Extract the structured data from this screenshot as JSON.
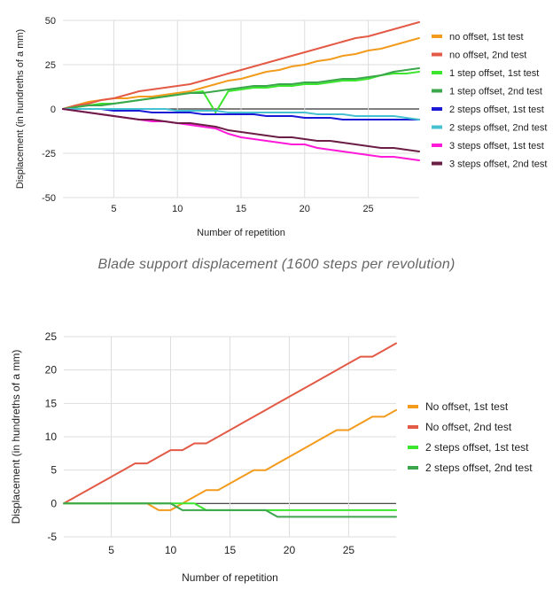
{
  "caption": "Blade support displacement (1600 steps per revolution)",
  "chart_data": [
    {
      "type": "line",
      "xlabel": "Number of repetition",
      "ylabel": "Displacement (in hundreths of a mm)",
      "x": [
        1,
        2,
        3,
        4,
        5,
        6,
        7,
        8,
        9,
        10,
        11,
        12,
        13,
        14,
        15,
        16,
        17,
        18,
        19,
        20,
        21,
        22,
        23,
        24,
        25,
        26,
        27,
        28,
        29
      ],
      "xlim": [
        1,
        29
      ],
      "ylim": [
        -50,
        50
      ],
      "xticks": [
        5,
        10,
        15,
        20,
        25
      ],
      "yticks": [
        -50,
        -25,
        0,
        25,
        50
      ],
      "grid": true,
      "legend": "right",
      "series": [
        {
          "name": "no offset, 1st test",
          "color": "#f29b1d",
          "values": [
            0,
            2,
            4,
            5,
            6,
            6,
            7,
            7,
            8,
            9,
            10,
            12,
            14,
            16,
            17,
            19,
            21,
            22,
            24,
            25,
            27,
            28,
            30,
            31,
            33,
            34,
            36,
            38,
            40
          ]
        },
        {
          "name": "no offset, 2nd test",
          "color": "#e35a46",
          "values": [
            0,
            2,
            3,
            5,
            6,
            8,
            10,
            11,
            12,
            13,
            14,
            16,
            18,
            20,
            22,
            24,
            26,
            28,
            30,
            32,
            34,
            36,
            38,
            40,
            41,
            43,
            45,
            47,
            49
          ]
        },
        {
          "name": "1 step offset, 1st test",
          "color": "#3ce62f",
          "values": [
            0,
            1,
            2,
            3,
            3,
            4,
            5,
            6,
            7,
            8,
            9,
            10,
            -2,
            10,
            11,
            12,
            12,
            13,
            13,
            14,
            14,
            15,
            16,
            16,
            17,
            19,
            20,
            20,
            21
          ]
        },
        {
          "name": "1 step offset, 2nd test",
          "color": "#3ca64c",
          "values": [
            0,
            1,
            2,
            2,
            3,
            4,
            5,
            6,
            7,
            8,
            9,
            9,
            10,
            11,
            12,
            13,
            13,
            14,
            14,
            15,
            15,
            16,
            17,
            17,
            18,
            19,
            21,
            22,
            23
          ]
        },
        {
          "name": "2 steps offset, 1st test",
          "color": "#1a1ad6",
          "values": [
            0,
            0,
            0,
            0,
            -1,
            -1,
            -1,
            -2,
            -2,
            -2,
            -2,
            -3,
            -3,
            -3,
            -3,
            -3,
            -4,
            -4,
            -4,
            -5,
            -5,
            -5,
            -6,
            -6,
            -6,
            -6,
            -6,
            -6,
            -6
          ]
        },
        {
          "name": "2 steps offset, 2nd test",
          "color": "#45c1d1",
          "values": [
            0,
            0,
            0,
            0,
            0,
            0,
            0,
            0,
            0,
            -1,
            -1,
            -1,
            -1,
            -2,
            -2,
            -2,
            -2,
            -2,
            -2,
            -2,
            -3,
            -3,
            -3,
            -4,
            -4,
            -4,
            -4,
            -5,
            -6
          ]
        },
        {
          "name": "3 steps offset, 1st test",
          "color": "#ff1ad9",
          "values": [
            0,
            -1,
            -2,
            -3,
            -4,
            -5,
            -6,
            -7,
            -7,
            -8,
            -9,
            -10,
            -11,
            -14,
            -16,
            -17,
            -18,
            -19,
            -20,
            -20,
            -22,
            -23,
            -24,
            -25,
            -26,
            -27,
            -27,
            -28,
            -29
          ]
        },
        {
          "name": "3 steps offset, 2nd test",
          "color": "#6b1e45",
          "values": [
            0,
            -1,
            -2,
            -3,
            -4,
            -5,
            -6,
            -6,
            -7,
            -8,
            -8,
            -9,
            -10,
            -12,
            -13,
            -14,
            -15,
            -16,
            -16,
            -17,
            -18,
            -18,
            -19,
            -20,
            -21,
            -22,
            -22,
            -23,
            -24
          ]
        }
      ]
    },
    {
      "type": "line",
      "xlabel": "Number of repetition",
      "ylabel": "Displacement (in hundreths of a mm)",
      "x": [
        1,
        2,
        3,
        4,
        5,
        6,
        7,
        8,
        9,
        10,
        11,
        12,
        13,
        14,
        15,
        16,
        17,
        18,
        19,
        20,
        21,
        22,
        23,
        24,
        25,
        26,
        27,
        28,
        29
      ],
      "xlim": [
        1,
        29
      ],
      "ylim": [
        -5,
        25
      ],
      "xticks": [
        5,
        10,
        15,
        20,
        25
      ],
      "yticks": [
        -5,
        0,
        5,
        10,
        15,
        20,
        25
      ],
      "grid": true,
      "legend": "right",
      "series": [
        {
          "name": "No offset, 1st test",
          "color": "#f29b1d",
          "values": [
            0,
            0,
            0,
            0,
            0,
            0,
            0,
            0,
            -1,
            -1,
            0,
            1,
            2,
            2,
            3,
            4,
            5,
            5,
            6,
            7,
            8,
            9,
            10,
            11,
            11,
            12,
            13,
            13,
            14
          ]
        },
        {
          "name": "No offset, 2nd test",
          "color": "#e35a46",
          "values": [
            0,
            1,
            2,
            3,
            4,
            5,
            6,
            6,
            7,
            8,
            8,
            9,
            9,
            10,
            11,
            12,
            13,
            14,
            15,
            16,
            17,
            18,
            19,
            20,
            21,
            22,
            22,
            23,
            24
          ]
        },
        {
          "name": "2 steps offset, 1st test",
          "color": "#3ce62f",
          "values": [
            0,
            0,
            0,
            0,
            0,
            0,
            0,
            0,
            0,
            0,
            0,
            0,
            -1,
            -1,
            -1,
            -1,
            -1,
            -1,
            -1,
            -1,
            -1,
            -1,
            -1,
            -1,
            -1,
            -1,
            -1,
            -1,
            -1
          ]
        },
        {
          "name": "2 steps offset, 2nd test",
          "color": "#3ca64c",
          "values": [
            0,
            0,
            0,
            0,
            0,
            0,
            0,
            0,
            0,
            0,
            -1,
            -1,
            -1,
            -1,
            -1,
            -1,
            -1,
            -1,
            -2,
            -2,
            -2,
            -2,
            -2,
            -2,
            -2,
            -2,
            -2,
            -2,
            -2
          ]
        }
      ]
    }
  ]
}
